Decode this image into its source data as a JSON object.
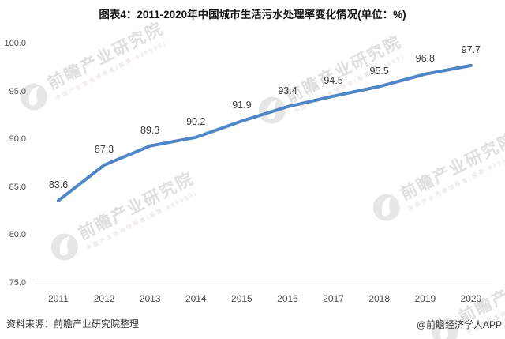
{
  "title": "图表4：2011-2020年中国城市生活污水处理率变化情况(单位：%)",
  "chart_data": {
    "type": "line",
    "title": "图表4：2011-2020年中国城市生活污水处理率变化情况(单位：%)",
    "categories": [
      "2011",
      "2012",
      "2013",
      "2014",
      "2015",
      "2016",
      "2017",
      "2018",
      "2019",
      "2020"
    ],
    "values": [
      83.6,
      87.3,
      89.3,
      90.2,
      91.9,
      93.4,
      94.5,
      95.5,
      96.8,
      97.7
    ],
    "data_labels": [
      "83.6",
      "87.3",
      "89.3",
      "90.2",
      "91.9",
      "93.4",
      "94.5",
      "95.5",
      "96.8",
      "97.7"
    ],
    "xlabel": "",
    "ylabel": "",
    "unit": "%",
    "ylim": [
      75.0,
      100.0
    ],
    "y_ticks": [
      "100.0",
      "95.0",
      "90.0",
      "85.0",
      "80.0",
      "75.0"
    ],
    "y_tick_values": [
      100,
      95,
      90,
      85,
      80,
      75
    ],
    "grid": false,
    "legend": "none",
    "line_color": "#4f86c6",
    "label_color": "#3b3b3b",
    "axis_color": "#d6d6d6"
  },
  "footer": {
    "source": "资料来源：前瞻产业研究院整理",
    "credit": "@前瞻经济学人APP"
  },
  "watermark": {
    "text": "前瞻产业研究院",
    "subtext": "中国产业咨询领导者(股票:839599)",
    "logo": "qianzhan-logo-icon"
  }
}
